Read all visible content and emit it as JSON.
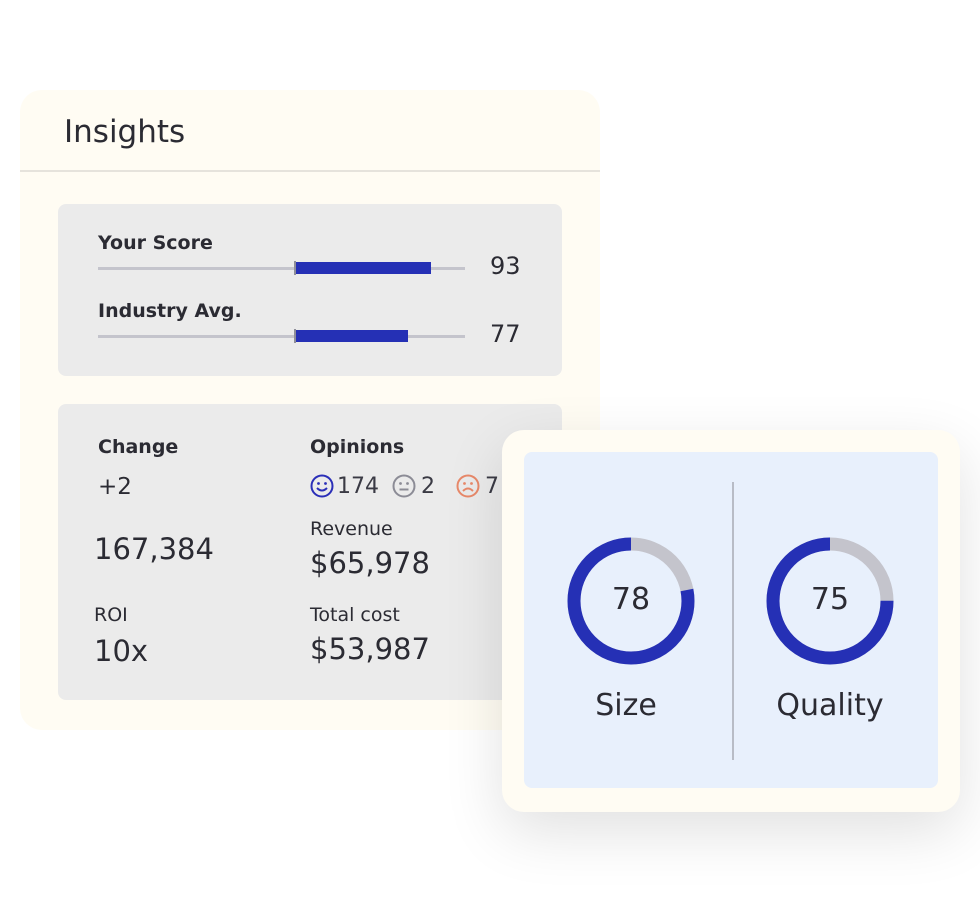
{
  "insights": {
    "title": "Insights",
    "scores": [
      {
        "label": "Your Score",
        "value": 93
      },
      {
        "label": "Industry Avg.",
        "value": 77
      }
    ],
    "change": {
      "label": "Change",
      "value": "+2"
    },
    "total": "167,384",
    "roi": {
      "label": "ROI",
      "value": "10x"
    },
    "opinions": {
      "label": "Opinions",
      "positive": 174,
      "neutral": 2,
      "negative": 7
    },
    "revenue": {
      "label": "Revenue",
      "value": "$65,978"
    },
    "total_cost": {
      "label": "Total cost",
      "value": "$53,987"
    }
  },
  "gauges": [
    {
      "label": "Size",
      "value": 78
    },
    {
      "label": "Quality",
      "value": 75
    }
  ]
}
